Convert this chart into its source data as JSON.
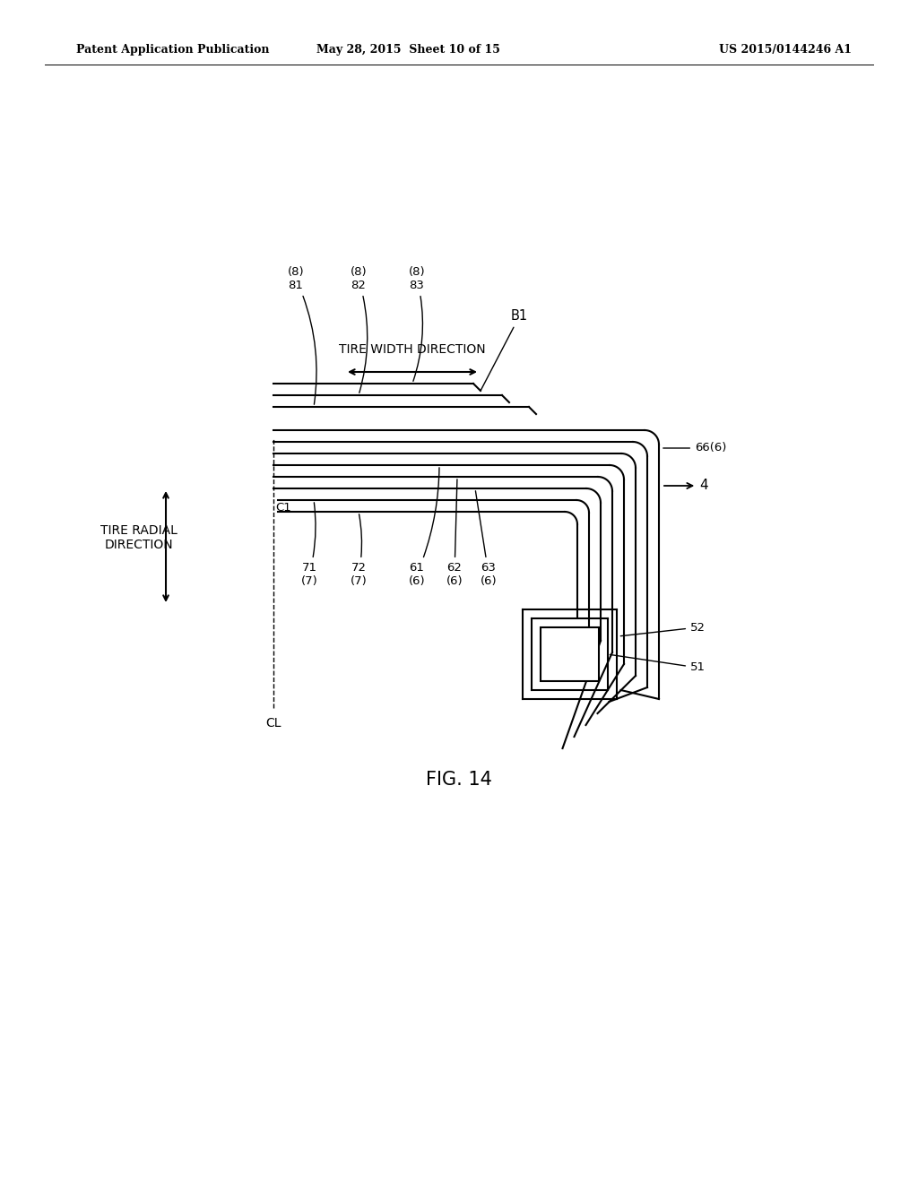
{
  "bg_color": "#ffffff",
  "header_left": "Patent Application Publication",
  "header_mid": "May 28, 2015  Sheet 10 of 15",
  "header_right": "US 2015/0144246 A1",
  "fig_label": "FIG. 14",
  "title_width_dir": "TIRE WIDTH DIRECTION",
  "title_radial_dir": "TIRE RADIAL\nDIRECTION"
}
